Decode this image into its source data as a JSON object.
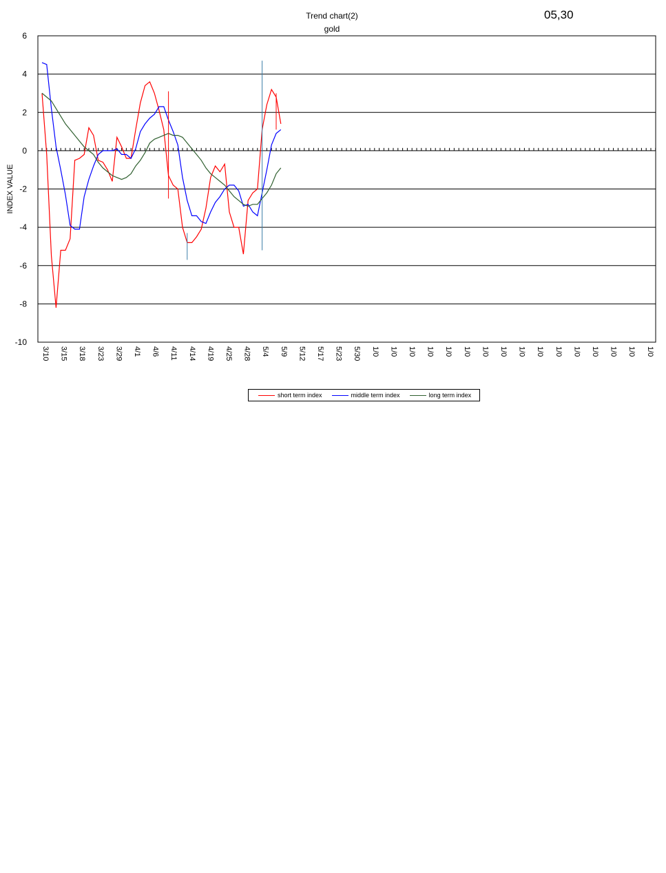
{
  "header": {
    "title": "Trend chart(2)",
    "subtitle": "gold",
    "date": "05,30"
  },
  "chart_data": {
    "type": "line",
    "ylabel": "INDEX VALUE",
    "ylim": [
      -10,
      6
    ],
    "yticks": [
      6,
      4,
      2,
      0,
      -2,
      -4,
      -6,
      -8,
      -10
    ],
    "x_tick_labels": [
      "3/10",
      "3/15",
      "3/18",
      "3/23",
      "3/29",
      "4/1",
      "4/6",
      "4/11",
      "4/14",
      "4/19",
      "4/25",
      "4/28",
      "5/4",
      "5/9",
      "5/12",
      "5/17",
      "5/23",
      "5/30",
      "1/0",
      "1/0",
      "1/0",
      "1/0",
      "1/0",
      "1/0",
      "1/0",
      "1/0",
      "1/0",
      "1/0",
      "1/0",
      "1/0",
      "1/0",
      "1/0",
      "1/0",
      "1/0"
    ],
    "colors": {
      "short": "#ff0000",
      "middle": "#0000ff",
      "long": "#2f5f2f",
      "marker": "#3a7ea8"
    },
    "series": [
      {
        "name": "short term index",
        "color": "#ff0000",
        "values": [
          3.0,
          -0.2,
          -5.5,
          -8.2,
          -5.2,
          -5.2,
          -4.6,
          -0.5,
          -0.4,
          -0.2,
          1.2,
          0.8,
          -0.5,
          -0.6,
          -1.0,
          -1.6,
          0.7,
          0.2,
          -0.4,
          -0.4,
          1.1,
          2.5,
          3.4,
          3.6,
          3.0,
          2.1,
          1.1,
          -1.3,
          -1.8,
          -2.0,
          -4.0,
          -4.8,
          -4.8,
          -4.5,
          -4.1,
          -3.0,
          -1.4,
          -0.8,
          -1.1,
          -0.7,
          -3.2,
          -4.0,
          -4.0,
          -5.4,
          -2.6,
          -2.2,
          -2.0,
          1.1,
          2.4,
          3.2,
          2.8,
          1.4
        ]
      },
      {
        "name": "middle term index",
        "color": "#0000ff",
        "values": [
          4.6,
          4.5,
          2.2,
          0.2,
          -1.0,
          -2.3,
          -3.9,
          -4.1,
          -4.1,
          -2.4,
          -1.5,
          -0.8,
          -0.2,
          0.0,
          0.0,
          0.0,
          0.1,
          -0.2,
          -0.2,
          -0.4,
          0.1,
          1.0,
          1.4,
          1.7,
          1.9,
          2.3,
          2.3,
          1.6,
          1.0,
          0.3,
          -1.4,
          -2.6,
          -3.4,
          -3.4,
          -3.7,
          -3.8,
          -3.2,
          -2.7,
          -2.4,
          -2.0,
          -1.8,
          -1.8,
          -2.1,
          -2.9,
          -2.8,
          -3.2,
          -3.4,
          -2.2,
          -1.0,
          0.3,
          0.9,
          1.1
        ]
      },
      {
        "name": "long term index",
        "color": "#2f5f2f",
        "values": [
          3.0,
          2.8,
          2.6,
          2.2,
          1.8,
          1.4,
          1.1,
          0.8,
          0.5,
          0.2,
          0.0,
          -0.2,
          -0.6,
          -0.9,
          -1.1,
          -1.3,
          -1.4,
          -1.5,
          -1.4,
          -1.2,
          -0.8,
          -0.5,
          -0.1,
          0.4,
          0.6,
          0.7,
          0.8,
          0.9,
          0.8,
          0.8,
          0.7,
          0.4,
          0.1,
          -0.2,
          -0.5,
          -0.9,
          -1.2,
          -1.4,
          -1.6,
          -1.8,
          -2.1,
          -2.4,
          -2.6,
          -2.8,
          -2.9,
          -2.8,
          -2.8,
          -2.5,
          -2.2,
          -1.8,
          -1.2,
          -0.9
        ]
      }
    ],
    "vertical_markers": [
      {
        "x_index": 27,
        "from": -2.5,
        "to": 3.1,
        "color": "#ff0000"
      },
      {
        "x_index": 31,
        "from": -5.7,
        "to": -4.3,
        "color": "#3a7ea8"
      },
      {
        "x_index": 47,
        "from": -5.2,
        "to": 4.7,
        "color": "#3a7ea8"
      },
      {
        "x_index": 50,
        "from": 1.1,
        "to": 3.0,
        "color": "#ff0000"
      }
    ],
    "legend": "bottom-center",
    "grid": true
  }
}
